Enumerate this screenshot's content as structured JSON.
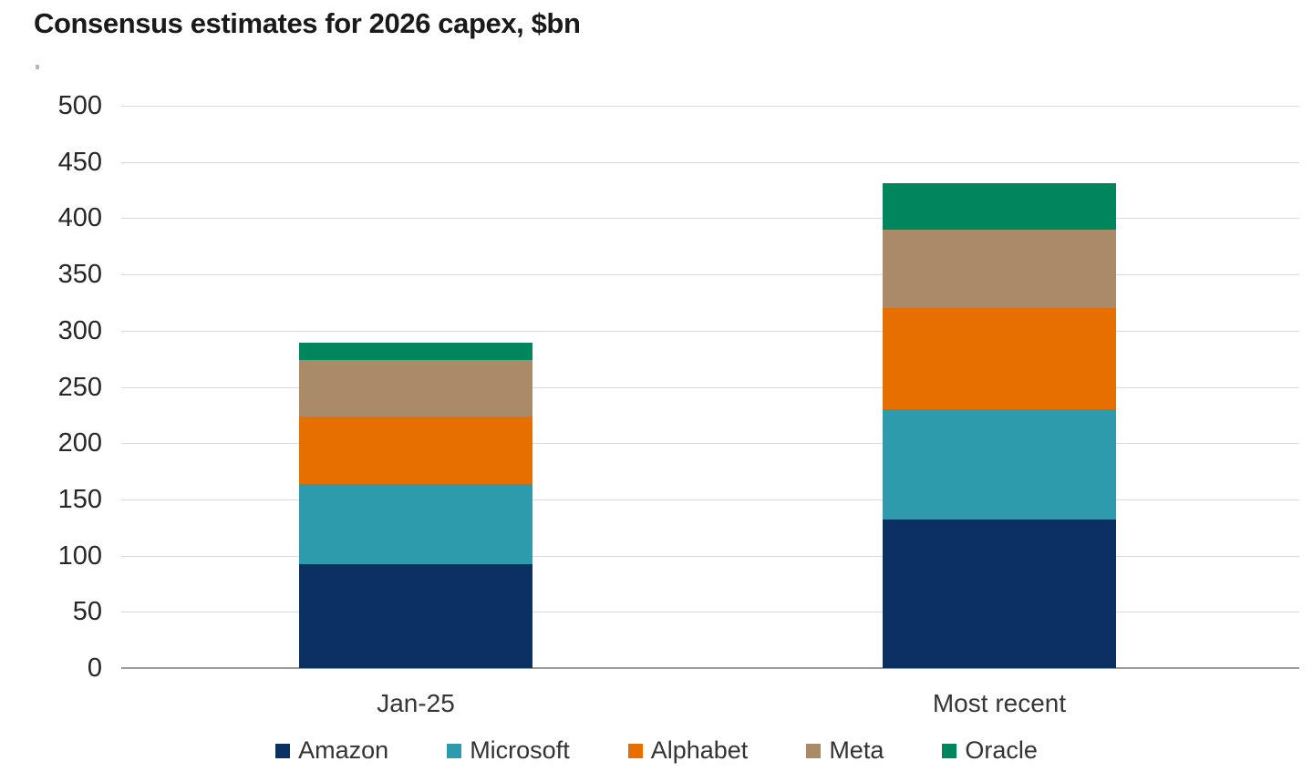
{
  "title": "Consensus estimates for 2026 capex, $bn",
  "chart_data": {
    "type": "bar",
    "stacked": true,
    "title": "Consensus estimates for 2026 capex, $bn",
    "xlabel": "",
    "ylabel": "",
    "categories": [
      "Jan-25",
      "Most recent"
    ],
    "series": [
      {
        "name": "Amazon",
        "color": "#0a3161",
        "values": [
          92,
          132
        ]
      },
      {
        "name": "Microsoft",
        "color": "#2e9bad",
        "values": [
          72,
          98
        ]
      },
      {
        "name": "Alphabet",
        "color": "#e66f00",
        "values": [
          60,
          90
        ]
      },
      {
        "name": "Meta",
        "color": "#ab8a68",
        "values": [
          50,
          70
        ]
      },
      {
        "name": "Oracle",
        "color": "#00855c",
        "values": [
          15,
          41
        ]
      }
    ],
    "stack_totals": [
      289,
      431
    ],
    "ylim": [
      0,
      500
    ],
    "yticks": [
      0,
      50,
      100,
      150,
      200,
      250,
      300,
      350,
      400,
      450,
      500
    ],
    "grid": "horizontal",
    "legend_position": "bottom"
  },
  "colors": {
    "grid": "#d9d9d9",
    "baseline": "#9a9a9a",
    "title_text": "#1a1a1a",
    "tick_text": "#262626",
    "label_text": "#363636"
  }
}
